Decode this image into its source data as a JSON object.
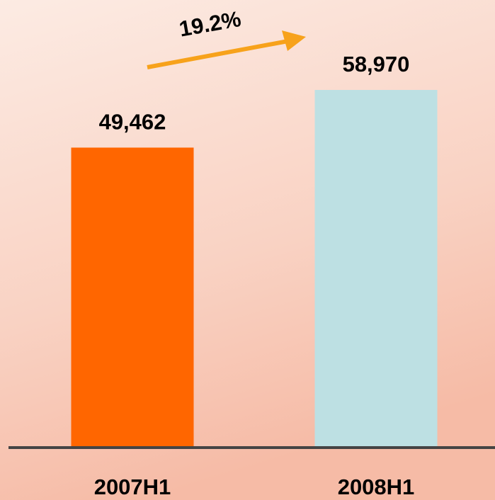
{
  "chart_data": {
    "type": "bar",
    "categories": [
      "2007H1",
      "2008H1"
    ],
    "values": [
      49462,
      58970
    ],
    "value_labels": [
      "49,462",
      "58,970"
    ],
    "colors": [
      "#ff6600",
      "#bde0e3"
    ],
    "annotation": "19.2%"
  }
}
